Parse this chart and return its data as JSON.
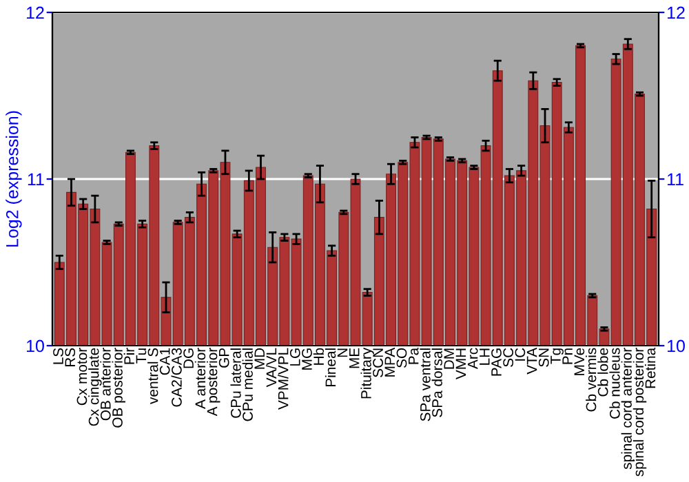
{
  "chart_data": {
    "type": "bar",
    "ylabel": "Log2 (expression)",
    "categories": [
      "LS",
      "RS",
      "Cx motor",
      "Cx cingulate",
      "OB anterior",
      "OB posterior",
      "Pir",
      "Tu",
      "ventral S",
      "CA1",
      "CA2/CA3",
      "DG",
      "A anterior",
      "A posterior",
      "GP",
      "CPu lateral",
      "CPu medial",
      "MD",
      "VA/VL",
      "VPM/VPL",
      "LG",
      "MG",
      "Hb",
      "Pineal",
      "N",
      "ME",
      "Pituitary",
      "SCN",
      "MPA",
      "SO",
      "Pa",
      "SPa ventral",
      "SPa dorsal",
      "DM",
      "VMH",
      "Arc",
      "LH",
      "PAG",
      "SC",
      "IC",
      "VTA",
      "SN",
      "Tg",
      "Pn",
      "MVe",
      "Cb vermis",
      "Cb lobe",
      "Cb nucleus",
      "spinal cord anterior",
      "spinal cord posterior",
      "Retina"
    ],
    "values": [
      10.5,
      10.92,
      10.85,
      10.82,
      10.62,
      10.73,
      11.16,
      10.73,
      11.2,
      10.29,
      10.74,
      10.77,
      10.97,
      11.05,
      11.1,
      10.67,
      10.99,
      11.07,
      10.59,
      10.65,
      10.64,
      11.02,
      10.97,
      10.57,
      10.8,
      11.0,
      10.32,
      10.77,
      11.03,
      11.1,
      11.22,
      11.25,
      11.24,
      11.12,
      11.11,
      11.07,
      11.2,
      11.65,
      11.02,
      11.05,
      11.59,
      11.32,
      11.58,
      11.31,
      11.8,
      10.3,
      10.1,
      11.72,
      11.81,
      11.51,
      10.82
    ],
    "errors": [
      0.04,
      0.08,
      0.03,
      0.08,
      0.01,
      0.01,
      0.01,
      0.02,
      0.02,
      0.09,
      0.01,
      0.03,
      0.07,
      0.01,
      0.07,
      0.02,
      0.06,
      0.07,
      0.09,
      0.02,
      0.03,
      0.01,
      0.11,
      0.03,
      0.01,
      0.03,
      0.02,
      0.1,
      0.06,
      0.01,
      0.03,
      0.01,
      0.01,
      0.01,
      0.01,
      0.01,
      0.03,
      0.06,
      0.04,
      0.03,
      0.05,
      0.1,
      0.02,
      0.03,
      0.01,
      0.01,
      0.01,
      0.03,
      0.03,
      0.01,
      0.17
    ],
    "color": "#b03333",
    "ylim": [
      10,
      12
    ],
    "yticks": [
      10,
      11,
      12
    ],
    "y2lim": [
      10,
      12
    ],
    "y2ticks": [
      10,
      11,
      12
    ],
    "grid": "y"
  }
}
